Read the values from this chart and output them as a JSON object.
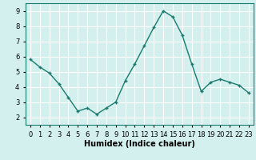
{
  "x": [
    0,
    1,
    2,
    3,
    4,
    5,
    6,
    7,
    8,
    9,
    10,
    11,
    12,
    13,
    14,
    15,
    16,
    17,
    18,
    19,
    20,
    21,
    22,
    23
  ],
  "y": [
    5.8,
    5.3,
    4.9,
    4.2,
    3.3,
    2.4,
    2.6,
    2.2,
    2.6,
    3.0,
    4.4,
    5.5,
    6.7,
    7.9,
    9.0,
    8.6,
    7.4,
    5.5,
    3.7,
    4.3,
    4.5,
    4.3,
    4.1,
    3.6
  ],
  "line_color": "#1a7a6e",
  "marker": "+",
  "marker_size": 3,
  "bg_color": "#d4f0ee",
  "grid_color": "#ffffff",
  "xlabel": "Humidex (Indice chaleur)",
  "xlim": [
    -0.5,
    23.5
  ],
  "ylim": [
    1.5,
    9.5
  ],
  "yticks": [
    2,
    3,
    4,
    5,
    6,
    7,
    8,
    9
  ],
  "xticks": [
    0,
    1,
    2,
    3,
    4,
    5,
    6,
    7,
    8,
    9,
    10,
    11,
    12,
    13,
    14,
    15,
    16,
    17,
    18,
    19,
    20,
    21,
    22,
    23
  ],
  "tick_label_fontsize": 6,
  "xlabel_fontsize": 7,
  "line_width": 1.0
}
